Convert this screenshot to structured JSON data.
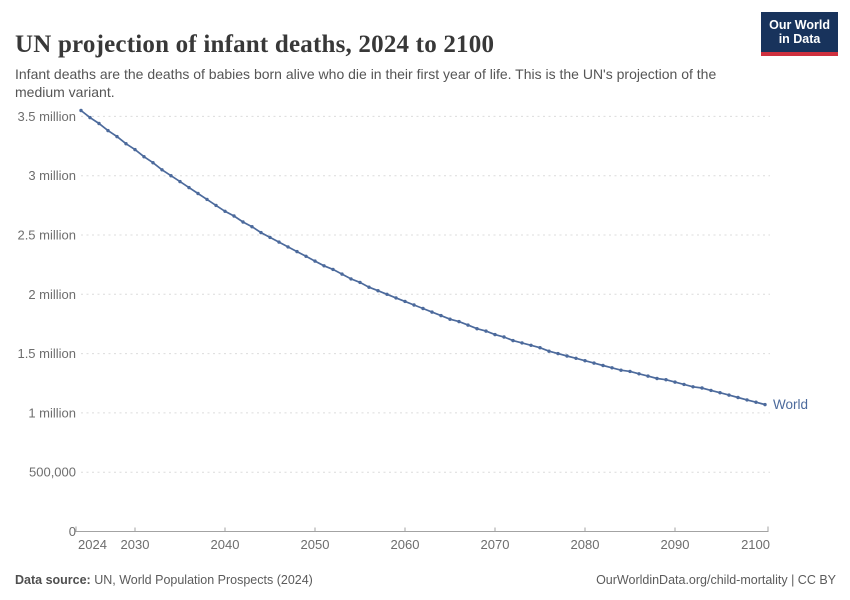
{
  "header": {
    "title": "UN projection of infant deaths, 2024 to 2100",
    "subtitle": "Infant deaths are the deaths of babies born alive who die in their first year of life. This is the UN's projection of the medium variant.",
    "logo": {
      "line1": "Our World",
      "line2": "in Data",
      "bg_color": "#18335c",
      "bar_color": "#cf303e"
    }
  },
  "chart_data": {
    "type": "line",
    "title": "UN projection of infant deaths, 2024 to 2100",
    "unit": "infant deaths (millions per year)",
    "grid": "horizontal-dashed",
    "legend_position": "line-end-label",
    "xlim": [
      2024,
      2100
    ],
    "ylim_millions": [
      0,
      3.7
    ],
    "x_ticks": [
      {
        "value": 2024,
        "label": "2024",
        "align": "start"
      },
      {
        "value": 2030,
        "label": "2030",
        "align": "middle"
      },
      {
        "value": 2040,
        "label": "2040",
        "align": "middle"
      },
      {
        "value": 2050,
        "label": "2050",
        "align": "middle"
      },
      {
        "value": 2060,
        "label": "2060",
        "align": "middle"
      },
      {
        "value": 2070,
        "label": "2070",
        "align": "middle"
      },
      {
        "value": 2080,
        "label": "2080",
        "align": "middle"
      },
      {
        "value": 2090,
        "label": "2090",
        "align": "middle"
      },
      {
        "value": 2100,
        "label": "2100",
        "align": "end"
      }
    ],
    "y_ticks": [
      {
        "value": 0,
        "label": "0"
      },
      {
        "value": 0.5,
        "label": "500,000"
      },
      {
        "value": 1,
        "label": "1 million"
      },
      {
        "value": 1.5,
        "label": "1.5 million"
      },
      {
        "value": 2,
        "label": "2 million"
      },
      {
        "value": 2.5,
        "label": "2.5 million"
      },
      {
        "value": 3,
        "label": "3 million"
      },
      {
        "value": 3.5,
        "label": "3.5 million"
      }
    ],
    "x": [
      2024,
      2025,
      2026,
      2027,
      2028,
      2029,
      2030,
      2031,
      2032,
      2033,
      2034,
      2035,
      2036,
      2037,
      2038,
      2039,
      2040,
      2041,
      2042,
      2043,
      2044,
      2045,
      2046,
      2047,
      2048,
      2049,
      2050,
      2051,
      2052,
      2053,
      2054,
      2055,
      2056,
      2057,
      2058,
      2059,
      2060,
      2061,
      2062,
      2063,
      2064,
      2065,
      2066,
      2067,
      2068,
      2069,
      2070,
      2071,
      2072,
      2073,
      2074,
      2075,
      2076,
      2077,
      2078,
      2079,
      2080,
      2081,
      2082,
      2083,
      2084,
      2085,
      2086,
      2087,
      2088,
      2089,
      2090,
      2091,
      2092,
      2093,
      2094,
      2095,
      2096,
      2097,
      2098,
      2099,
      2100
    ],
    "series": [
      {
        "name": "World",
        "color": "#4C6A9C",
        "values_millions": [
          3.55,
          3.49,
          3.44,
          3.38,
          3.33,
          3.27,
          3.22,
          3.16,
          3.11,
          3.05,
          3.0,
          2.95,
          2.9,
          2.85,
          2.8,
          2.75,
          2.7,
          2.66,
          2.61,
          2.57,
          2.52,
          2.48,
          2.44,
          2.4,
          2.36,
          2.32,
          2.28,
          2.24,
          2.21,
          2.17,
          2.13,
          2.1,
          2.06,
          2.03,
          2.0,
          1.97,
          1.94,
          1.91,
          1.88,
          1.85,
          1.82,
          1.79,
          1.77,
          1.74,
          1.71,
          1.69,
          1.66,
          1.64,
          1.61,
          1.59,
          1.57,
          1.55,
          1.52,
          1.5,
          1.48,
          1.46,
          1.44,
          1.42,
          1.4,
          1.38,
          1.36,
          1.35,
          1.33,
          1.31,
          1.29,
          1.28,
          1.26,
          1.24,
          1.22,
          1.21,
          1.19,
          1.17,
          1.15,
          1.13,
          1.11,
          1.09,
          1.07
        ]
      }
    ]
  },
  "footer": {
    "source_label": "Data source:",
    "source_value": "UN, World Population Prospects (2024)",
    "link": "OurWorldinData.org/child-mortality",
    "separator": "|",
    "license": "CC BY"
  },
  "colors": {
    "line": "#4C6A9C",
    "grid": "#dcdcdc",
    "axis": "#a3a3a3",
    "tick_text": "#6e6e6e",
    "title_text": "#383838",
    "subtitle_text": "#555555"
  }
}
